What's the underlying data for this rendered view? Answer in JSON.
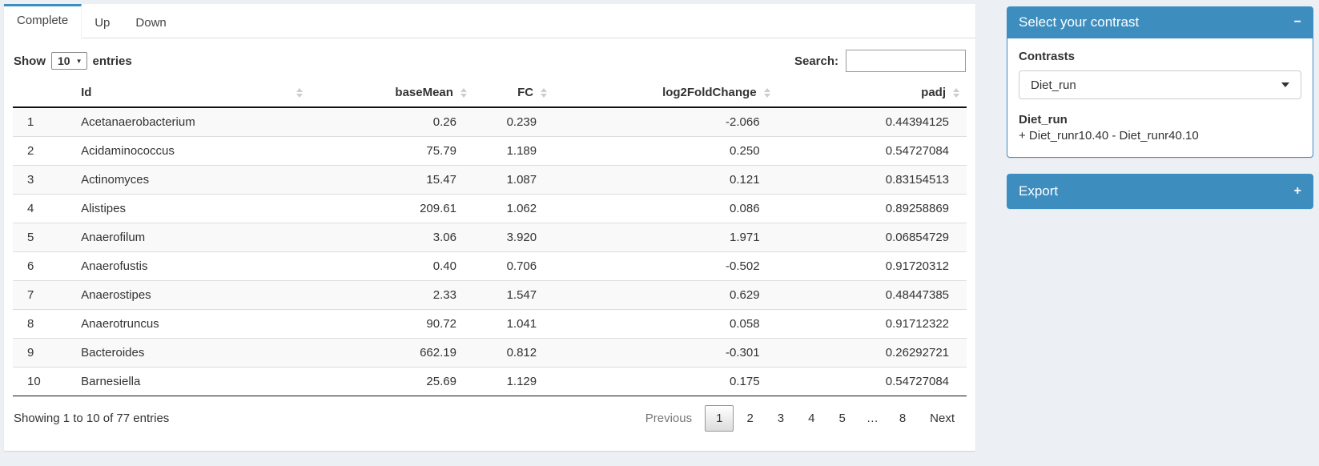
{
  "tabs": [
    {
      "label": "Complete",
      "active": true
    },
    {
      "label": "Up",
      "active": false
    },
    {
      "label": "Down",
      "active": false
    }
  ],
  "table": {
    "show_label": "Show",
    "page_size": "10",
    "entries_label": "entries",
    "search_label": "Search:",
    "search_value": "",
    "columns": [
      "Id",
      "baseMean",
      "FC",
      "log2FoldChange",
      "padj"
    ],
    "rows": [
      {
        "n": "1",
        "id": "Acetanaerobacterium",
        "baseMean": "0.26",
        "fc": "0.239",
        "log2fc": "-2.066",
        "padj": "0.44394125"
      },
      {
        "n": "2",
        "id": "Acidaminococcus",
        "baseMean": "75.79",
        "fc": "1.189",
        "log2fc": "0.250",
        "padj": "0.54727084"
      },
      {
        "n": "3",
        "id": "Actinomyces",
        "baseMean": "15.47",
        "fc": "1.087",
        "log2fc": "0.121",
        "padj": "0.83154513"
      },
      {
        "n": "4",
        "id": "Alistipes",
        "baseMean": "209.61",
        "fc": "1.062",
        "log2fc": "0.086",
        "padj": "0.89258869"
      },
      {
        "n": "5",
        "id": "Anaerofilum",
        "baseMean": "3.06",
        "fc": "3.920",
        "log2fc": "1.971",
        "padj": "0.06854729"
      },
      {
        "n": "6",
        "id": "Anaerofustis",
        "baseMean": "0.40",
        "fc": "0.706",
        "log2fc": "-0.502",
        "padj": "0.91720312"
      },
      {
        "n": "7",
        "id": "Anaerostipes",
        "baseMean": "2.33",
        "fc": "1.547",
        "log2fc": "0.629",
        "padj": "0.48447385"
      },
      {
        "n": "8",
        "id": "Anaerotruncus",
        "baseMean": "90.72",
        "fc": "1.041",
        "log2fc": "0.058",
        "padj": "0.91712322"
      },
      {
        "n": "9",
        "id": "Bacteroides",
        "baseMean": "662.19",
        "fc": "0.812",
        "log2fc": "-0.301",
        "padj": "0.26292721"
      },
      {
        "n": "10",
        "id": "Barnesiella",
        "baseMean": "25.69",
        "fc": "1.129",
        "log2fc": "0.175",
        "padj": "0.54727084"
      }
    ],
    "info": "Showing 1 to 10 of 77 entries",
    "pagination": {
      "previous": "Previous",
      "pages": [
        "1",
        "2",
        "3",
        "4",
        "5",
        "…",
        "8"
      ],
      "current": "1",
      "next": "Next"
    }
  },
  "contrast_panel": {
    "title": "Select your contrast",
    "collapse_icon": "−",
    "contrasts_label": "Contrasts",
    "selected_contrast": "Diet_run",
    "contrast_name": "Diet_run",
    "contrast_formula": "+ Diet_runr10.40 - Diet_runr40.10"
  },
  "export_panel": {
    "title": "Export",
    "collapse_icon": "+"
  },
  "colors": {
    "accent_blue": "#3d8ebf",
    "page_background": "#ecf0f5",
    "stripe_gray": "#f9f9f9"
  }
}
